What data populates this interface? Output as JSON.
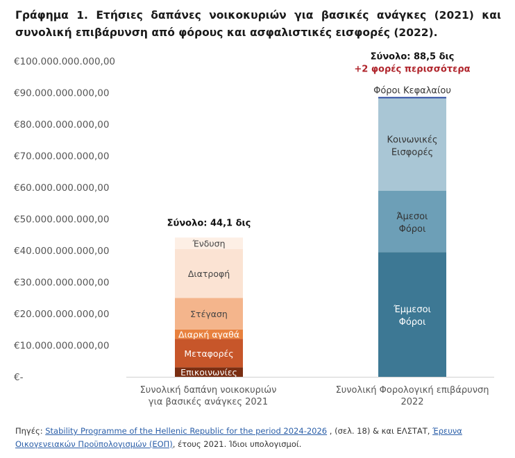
{
  "title": "Γράφημα 1. Ετήσιες δαπάνες νοικοκυριών για βασικές ανάγκες (2021) και συνολική επιβάρυνση από φόρους και ασφαλιστικές εισφορές (2022).",
  "chart_data": {
    "type": "bar",
    "stacked": true,
    "ylim": [
      0,
      100000000000
    ],
    "yticks": [
      0,
      10000000000,
      20000000000,
      30000000000,
      40000000000,
      50000000000,
      60000000000,
      70000000000,
      80000000000,
      90000000000,
      100000000000
    ],
    "ytick_labels": [
      "€-",
      "€10.000.000.000,00",
      "€20.000.000.000,00",
      "€30.000.000.000,00",
      "€40.000.000.000,00",
      "€50.000.000.000,00",
      "€60.000.000.000,00",
      "€70.000.000.000,00",
      "€80.000.000.000,00",
      "€90.000.000.000,00",
      "€100.000.000.000,00"
    ],
    "grid": false,
    "categories": [
      {
        "line1": "Συνολική δαπάνη νοικοκυριών",
        "line2": "για βασικές ανάγκες 2021"
      },
      {
        "line1": "Συνολική Φορολογική επιβάρυνση",
        "line2": "2022"
      }
    ],
    "bars": [
      {
        "total_label": "Σύνολο: 44,1 δις",
        "segments": [
          {
            "name": "Επικοινωνίες",
            "value": 3000000000,
            "color": "#7a2e12",
            "text_color": "#ffffff"
          },
          {
            "name": "Μεταφορές",
            "value": 9000000000,
            "color": "#c7562a",
            "text_color": "#ffffff"
          },
          {
            "name": "Διαρκή αγαθά",
            "value": 3000000000,
            "color": "#e8813e",
            "text_color": "#ffffff"
          },
          {
            "name": "Στέγαση",
            "value": 10000000000,
            "color": "#f4b58c",
            "text_color": "#444444"
          },
          {
            "name": "Διατροφή",
            "value": 15500000000,
            "color": "#fbe3d3",
            "text_color": "#444444"
          },
          {
            "name": "Ένδυση",
            "value": 3600000000,
            "color": "#fdefe5",
            "text_color": "#444444"
          }
        ]
      },
      {
        "total_label": "Σύνολο: 88,5 δις",
        "sub_label": "+2 φορές περισσότερα",
        "segments": [
          {
            "name": "Έμμεσοι Φόροι",
            "lines": [
              "Έμμεσοι",
              "Φόροι"
            ],
            "value": 39500000000,
            "color": "#3d7894",
            "text_color": "#ffffff"
          },
          {
            "name": "Άμεσοι Φόροι",
            "lines": [
              "Άμεσοι",
              "Φόροι"
            ],
            "value": 19400000000,
            "color": "#6d9fb7",
            "text_color": "#333333"
          },
          {
            "name": "Κοινωνικές Εισφορές",
            "lines": [
              "Κοινωνικές",
              "Εισφορές"
            ],
            "value": 29300000000,
            "color": "#a9c6d5",
            "text_color": "#333333"
          },
          {
            "name": "Φόροι Κεφαλαίου",
            "value": 300000000,
            "color": "#2b4aa0",
            "text_color": "#333333",
            "label_above": true
          }
        ]
      }
    ],
    "colors": {
      "sub_label": "#b0252c"
    }
  },
  "footer": {
    "prefix": "Πηγές: ",
    "link1": "Stability Programme of the Hellenic Republic for the period 2024-2026",
    "mid1": " , (σελ. 18) & και ΕΛΣΤΑΤ, ",
    "link2": "Έρευνα Οικογενειακών Προϋπολογισμών (ΕΟΠ)",
    "mid2": ", έτους 2021. Ίδιοι υπολογισμοί."
  }
}
